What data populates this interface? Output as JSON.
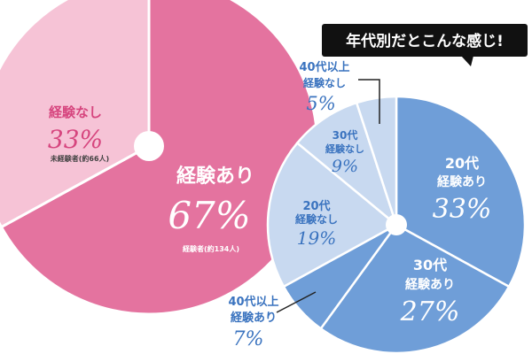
{
  "chart_data": [
    {
      "type": "pie",
      "slices": [
        {
          "label": "経験あり",
          "value": 67,
          "percent_text": "67%",
          "note": "経験者(約134人)",
          "color": "#e4739f"
        },
        {
          "label": "経験なし",
          "value": 33,
          "percent_text": "33%",
          "note": "未経験者(約66人)",
          "color": "#f6c3d6"
        }
      ]
    },
    {
      "type": "pie",
      "callout": "年代別だとこんな感じ!",
      "slices": [
        {
          "label": "20代 経験あり",
          "line1": "20代",
          "line2": "経験あり",
          "value": 33,
          "percent_text": "33%",
          "color": "#6f9ed8"
        },
        {
          "label": "30代 経験あり",
          "line1": "30代",
          "line2": "経験あり",
          "value": 27,
          "percent_text": "27%",
          "color": "#6f9ed8"
        },
        {
          "label": "40代以上 経験あり",
          "line1": "40代以上",
          "line2": "経験あり",
          "value": 7,
          "percent_text": "7%",
          "color": "#6f9ed8"
        },
        {
          "label": "20代 経験なし",
          "line1": "20代",
          "line2": "経験なし",
          "value": 19,
          "percent_text": "19%",
          "color": "#c8d9f0"
        },
        {
          "label": "30代 経験なし",
          "line1": "30代",
          "line2": "経験なし",
          "value": 9,
          "percent_text": "9%",
          "color": "#c8d9f0"
        },
        {
          "label": "40代以上 経験なし",
          "line1": "40代以上",
          "line2": "経験なし",
          "value": 5,
          "percent_text": "5%",
          "color": "#c8d9f0"
        }
      ]
    }
  ]
}
